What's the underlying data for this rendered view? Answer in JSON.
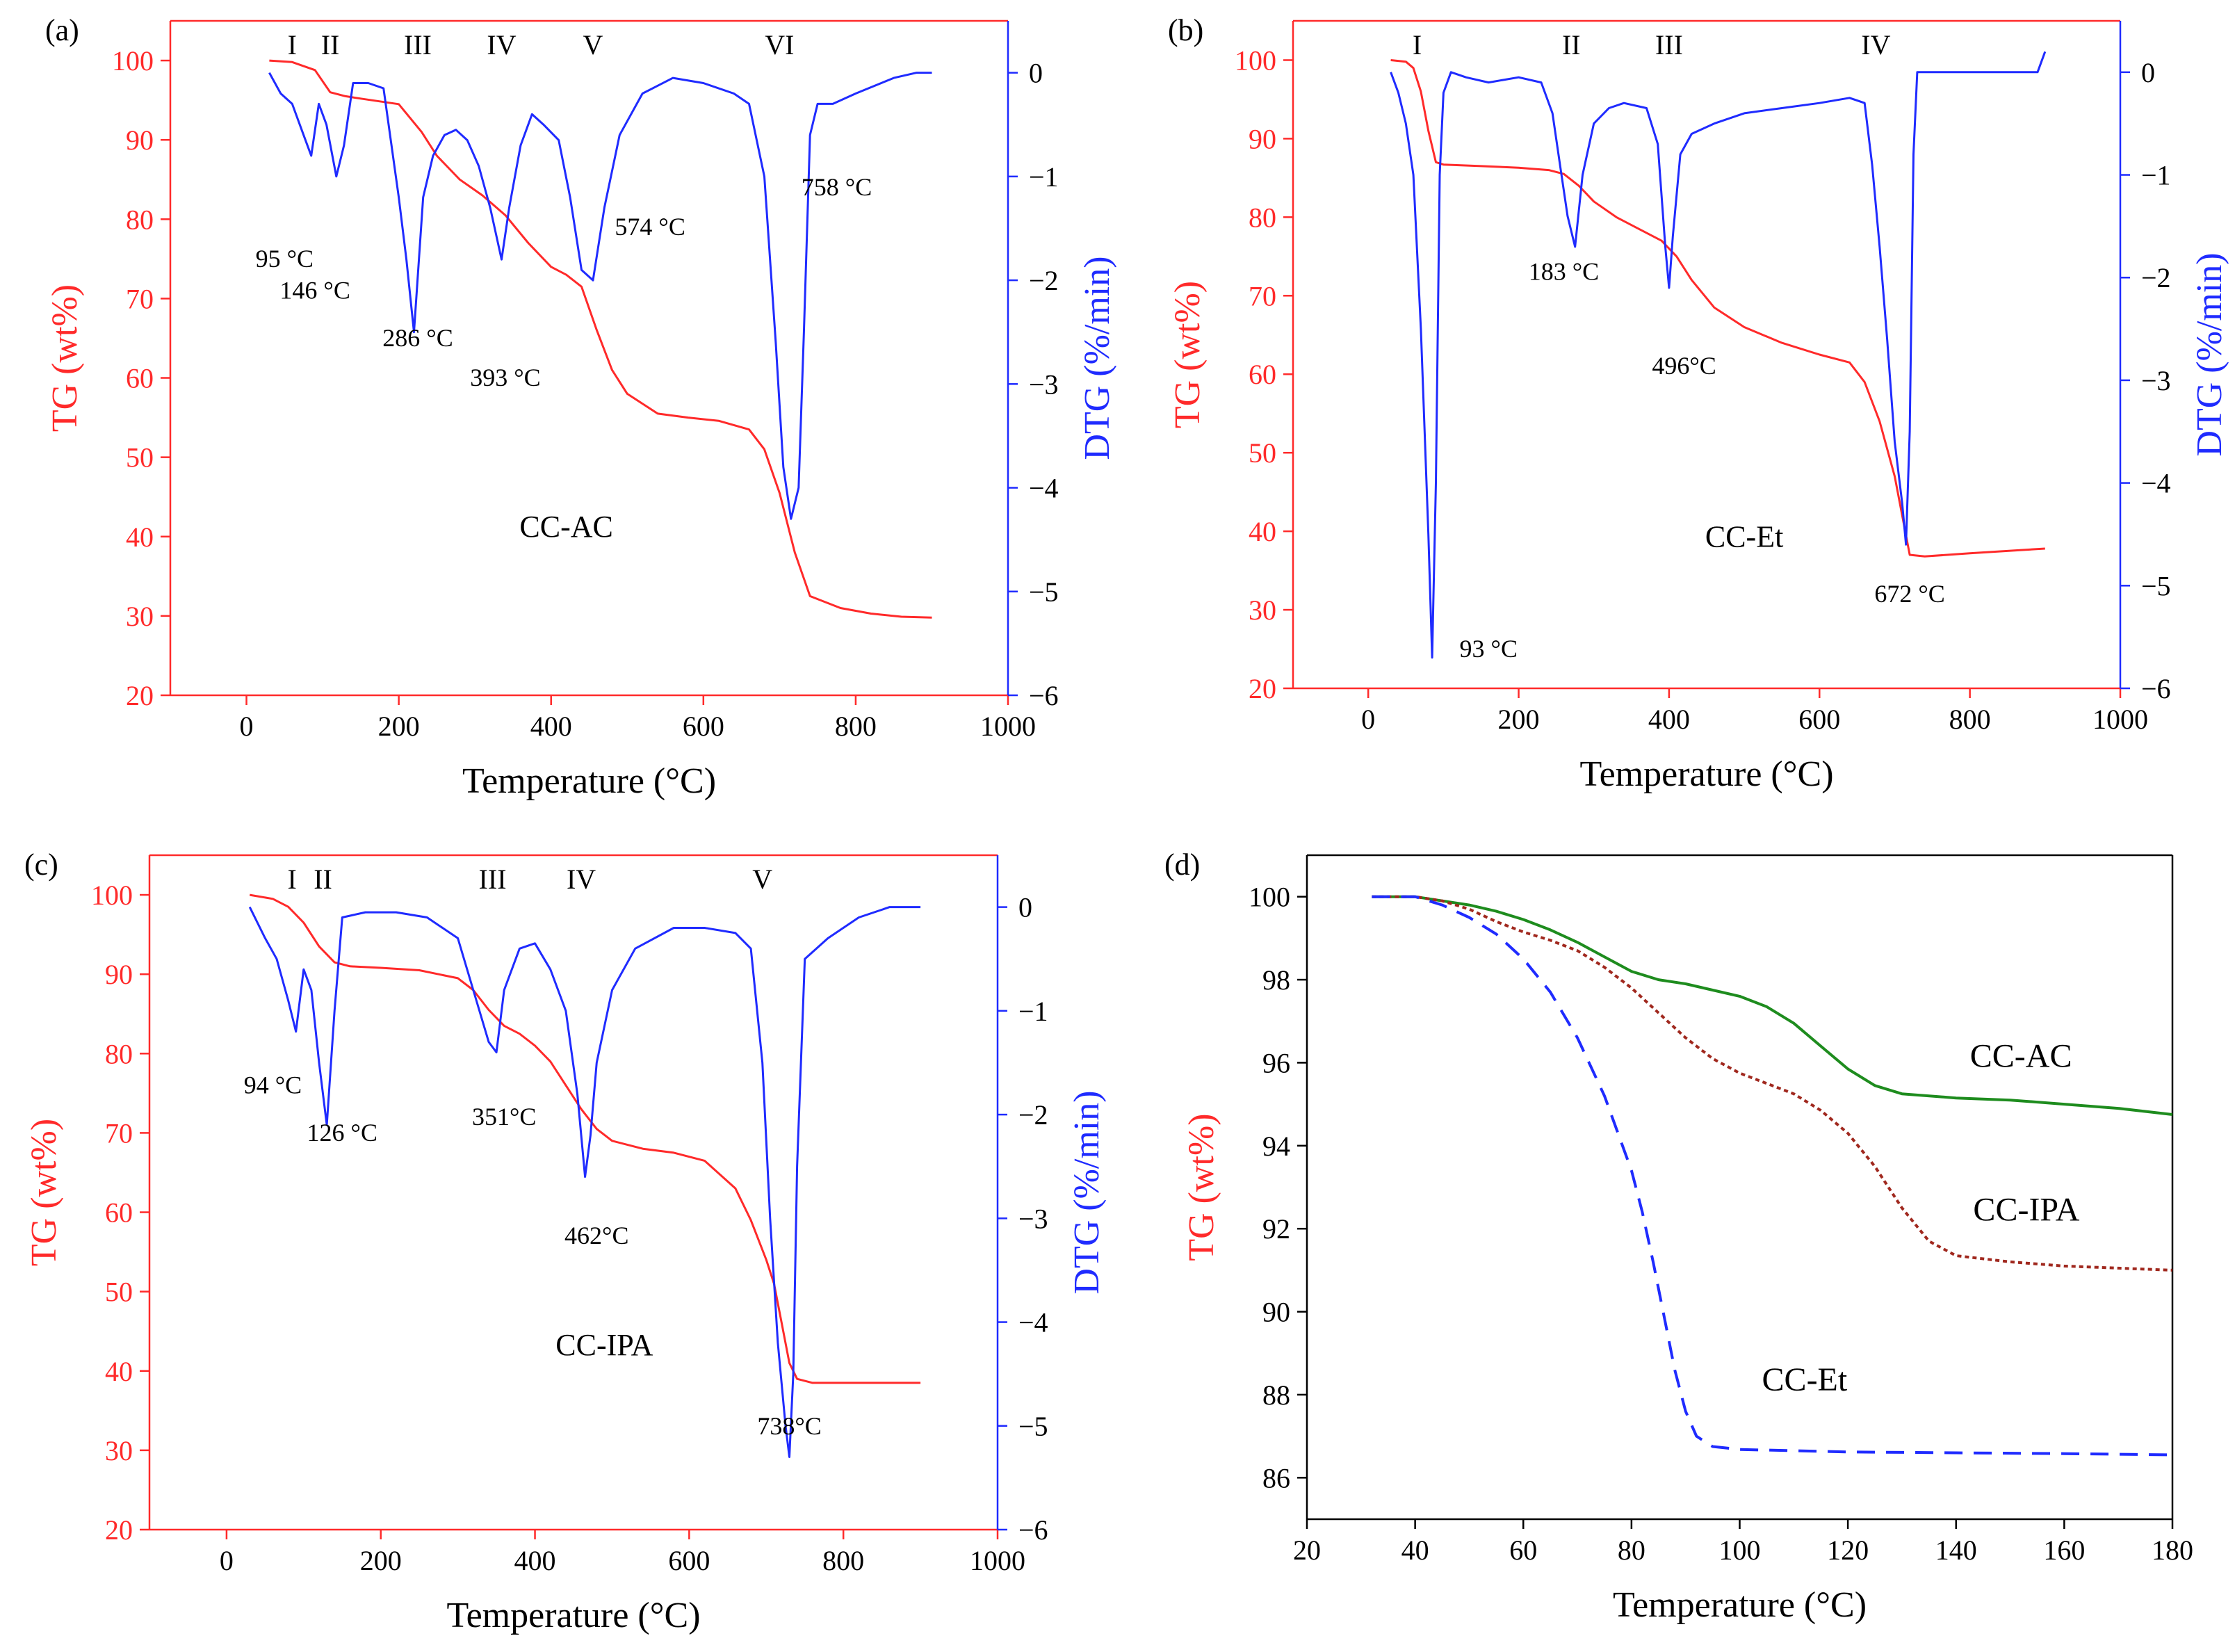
{
  "colors": {
    "tg": "#ff2a2a",
    "dtg": "#1f2bff",
    "axis_left": "#ff2a2a",
    "axis_right": "#1f2bff",
    "frame": "#ff2a2a",
    "black": "#000000",
    "cc_ac": "#1e8c1e",
    "cc_ipa": "#a0281e",
    "cc_et": "#1f2bff"
  },
  "chart_data": [
    {
      "id": "a",
      "panel_label": "(a)",
      "type": "line",
      "sample": "CC-AC",
      "xlabel": "Temperature (°C)",
      "ylabel_left": "TG (wt%)",
      "ylabel_right": "DTG (%/min)",
      "xlim": [
        -100,
        1000
      ],
      "ylim_left": [
        20,
        105
      ],
      "ylim_right": [
        -6,
        0.5
      ],
      "xticks": [
        "0",
        "200",
        "400",
        "600",
        "800",
        "1000"
      ],
      "yticks_left": [
        "20",
        "30",
        "40",
        "50",
        "60",
        "70",
        "80",
        "90",
        "100"
      ],
      "yticks_right": [
        "0",
        "−1",
        "−2",
        "−3",
        "−4",
        "−5",
        "−6"
      ],
      "stages": [
        {
          "label": "I",
          "x": 60
        },
        {
          "label": "II",
          "x": 110
        },
        {
          "label": "III",
          "x": 225
        },
        {
          "label": "IV",
          "x": 335
        },
        {
          "label": "V",
          "x": 455
        },
        {
          "label": "VI",
          "x": 700
        }
      ],
      "annotations": [
        {
          "text": "95 °C",
          "x": 50,
          "y": 74
        },
        {
          "text": "146 °C",
          "x": 90,
          "y": 70
        },
        {
          "text": "286 °C",
          "x": 225,
          "y": 64
        },
        {
          "text": "393 °C",
          "x": 340,
          "y": 59
        },
        {
          "text": "574 °C",
          "x": 530,
          "y": 78
        },
        {
          "text": "758 °C",
          "x": 775,
          "y": 83
        }
      ],
      "sample_label_pos": {
        "x": 420,
        "y": 40
      },
      "series": [
        {
          "name": "TG",
          "axis": "left",
          "x": [
            30,
            60,
            90,
            110,
            130,
            150,
            200,
            230,
            250,
            280,
            310,
            340,
            370,
            400,
            420,
            440,
            460,
            480,
            500,
            540,
            580,
            620,
            660,
            680,
            700,
            720,
            740,
            780,
            820,
            860,
            900
          ],
          "y": [
            100,
            99.8,
            98.8,
            96,
            95.5,
            95.2,
            94.5,
            91,
            88,
            85,
            83,
            80.5,
            77,
            74,
            73,
            71.5,
            66,
            61,
            58,
            55.5,
            55,
            54.6,
            53.5,
            51,
            45.5,
            38,
            32.5,
            31,
            30.3,
            29.9,
            29.8
          ]
        },
        {
          "name": "DTG",
          "axis": "right",
          "x": [
            30,
            45,
            60,
            75,
            85,
            95,
            105,
            118,
            128,
            140,
            160,
            180,
            200,
            210,
            220,
            232,
            245,
            260,
            275,
            290,
            305,
            320,
            335,
            345,
            360,
            375,
            390,
            410,
            425,
            440,
            455,
            470,
            490,
            520,
            560,
            600,
            640,
            660,
            680,
            695,
            705,
            715,
            725,
            732,
            740,
            750,
            770,
            800,
            850,
            880,
            900
          ],
          "y": [
            0,
            -0.2,
            -0.3,
            -0.6,
            -0.8,
            -0.3,
            -0.5,
            -1.0,
            -0.7,
            -0.1,
            -0.1,
            -0.15,
            -1.2,
            -1.8,
            -2.5,
            -1.2,
            -0.8,
            -0.6,
            -0.55,
            -0.65,
            -0.9,
            -1.3,
            -1.8,
            -1.3,
            -0.7,
            -0.4,
            -0.5,
            -0.65,
            -1.2,
            -1.9,
            -2.0,
            -1.3,
            -0.6,
            -0.2,
            -0.05,
            -0.1,
            -0.2,
            -0.3,
            -1.0,
            -2.6,
            -3.8,
            -4.3,
            -4.0,
            -2.5,
            -0.6,
            -0.3,
            -0.3,
            -0.2,
            -0.05,
            0,
            0
          ]
        }
      ]
    },
    {
      "id": "b",
      "panel_label": "(b)",
      "type": "line",
      "sample": "CC-Et",
      "xlabel": "Temperature (°C)",
      "ylabel_left": "TG (wt%)",
      "ylabel_right": "DTG (%/min)",
      "xlim": [
        -100,
        1000
      ],
      "ylim_left": [
        20,
        105
      ],
      "ylim_right": [
        -6,
        0.5
      ],
      "xticks": [
        "0",
        "200",
        "400",
        "600",
        "800",
        "1000"
      ],
      "yticks_left": [
        "20",
        "30",
        "40",
        "50",
        "60",
        "70",
        "80",
        "90",
        "100"
      ],
      "yticks_right": [
        "0",
        "−1",
        "−2",
        "−3",
        "−4",
        "−5",
        "−6"
      ],
      "stages": [
        {
          "label": "I",
          "x": 65
        },
        {
          "label": "II",
          "x": 270
        },
        {
          "label": "III",
          "x": 400
        },
        {
          "label": "IV",
          "x": 675
        }
      ],
      "annotations": [
        {
          "text": "93 °C",
          "x": 160,
          "y": 24
        },
        {
          "text": "183 °C",
          "x": 260,
          "y": 72
        },
        {
          "text": "496°C",
          "x": 420,
          "y": 60
        },
        {
          "text": "672 °C",
          "x": 720,
          "y": 31
        }
      ],
      "sample_label_pos": {
        "x": 500,
        "y": 38
      },
      "series": [
        {
          "name": "TG",
          "axis": "left",
          "x": [
            30,
            50,
            60,
            70,
            80,
            90,
            100,
            150,
            200,
            240,
            260,
            280,
            300,
            330,
            360,
            390,
            410,
            430,
            460,
            500,
            550,
            600,
            640,
            660,
            680,
            700,
            710,
            720,
            740,
            800,
            850,
            900
          ],
          "y": [
            100,
            99.8,
            99,
            96,
            91,
            87,
            86.7,
            86.5,
            86.3,
            86,
            85.5,
            84,
            82,
            80,
            78.5,
            77,
            75,
            72,
            68.5,
            66,
            64,
            62.5,
            61.5,
            59,
            54,
            47,
            42,
            37,
            36.8,
            37.2,
            37.5,
            37.8
          ]
        },
        {
          "name": "DTG",
          "axis": "right",
          "x": [
            30,
            40,
            50,
            60,
            70,
            80,
            85,
            90,
            95,
            100,
            110,
            130,
            160,
            200,
            230,
            245,
            255,
            265,
            275,
            285,
            300,
            320,
            340,
            370,
            385,
            395,
            400,
            405,
            415,
            430,
            460,
            500,
            550,
            600,
            640,
            660,
            670,
            680,
            690,
            700,
            710,
            715,
            720,
            725,
            730,
            760,
            800,
            850,
            890,
            900
          ],
          "y": [
            0,
            -0.2,
            -0.5,
            -1.0,
            -2.5,
            -4.5,
            -5.7,
            -4.0,
            -1.0,
            -0.2,
            0,
            -0.05,
            -0.1,
            -0.05,
            -0.1,
            -0.4,
            -0.9,
            -1.4,
            -1.7,
            -1.0,
            -0.5,
            -0.35,
            -0.3,
            -0.35,
            -0.7,
            -1.7,
            -2.1,
            -1.6,
            -0.8,
            -0.6,
            -0.5,
            -0.4,
            -0.35,
            -0.3,
            -0.25,
            -0.3,
            -0.9,
            -1.7,
            -2.6,
            -3.6,
            -4.2,
            -4.6,
            -3.5,
            -0.8,
            0,
            0,
            0,
            0,
            0,
            0.2
          ]
        }
      ]
    },
    {
      "id": "c",
      "panel_label": "(c)",
      "type": "line",
      "sample": "CC-IPA",
      "xlabel": "Temperature (°C)",
      "ylabel_left": "TG (wt%)",
      "ylabel_right": "DTG (%/min)",
      "xlim": [
        -100,
        1000
      ],
      "ylim_left": [
        20,
        105
      ],
      "ylim_right": [
        -6,
        0.5
      ],
      "xticks": [
        "0",
        "200",
        "400",
        "600",
        "800",
        "1000"
      ],
      "yticks_left": [
        "20",
        "30",
        "40",
        "50",
        "60",
        "70",
        "80",
        "90",
        "100"
      ],
      "yticks_right": [
        "0",
        "−1",
        "−2",
        "−3",
        "−4",
        "−5",
        "−6"
      ],
      "stages": [
        {
          "label": "I",
          "x": 85
        },
        {
          "label": "II",
          "x": 125
        },
        {
          "label": "III",
          "x": 345
        },
        {
          "label": "IV",
          "x": 460
        },
        {
          "label": "V",
          "x": 695
        }
      ],
      "annotations": [
        {
          "text": "94 °C",
          "x": 60,
          "y": 75
        },
        {
          "text": "126 °C",
          "x": 150,
          "y": 69
        },
        {
          "text": "351°C",
          "x": 360,
          "y": 71
        },
        {
          "text": "462°C",
          "x": 480,
          "y": 56
        },
        {
          "text": "738°C",
          "x": 730,
          "y": 32
        }
      ],
      "sample_label_pos": {
        "x": 490,
        "y": 42
      },
      "series": [
        {
          "name": "TG",
          "axis": "left",
          "x": [
            30,
            60,
            80,
            100,
            120,
            140,
            160,
            200,
            250,
            300,
            320,
            340,
            360,
            380,
            400,
            420,
            440,
            460,
            480,
            500,
            540,
            580,
            620,
            660,
            680,
            700,
            710,
            720,
            730,
            740,
            760,
            800,
            850,
            900
          ],
          "y": [
            100,
            99.5,
            98.5,
            96.5,
            93.5,
            91.5,
            91,
            90.8,
            90.5,
            89.5,
            88,
            85.5,
            83.5,
            82.5,
            81,
            79,
            76,
            73,
            70.5,
            69,
            68,
            67.5,
            66.5,
            63,
            59,
            54,
            51,
            46,
            41,
            39,
            38.5,
            38.5,
            38.5,
            38.5
          ]
        },
        {
          "name": "DTG",
          "axis": "right",
          "x": [
            30,
            50,
            65,
            80,
            90,
            100,
            110,
            120,
            130,
            140,
            150,
            180,
            220,
            260,
            300,
            320,
            340,
            350,
            360,
            380,
            400,
            420,
            440,
            455,
            465,
            472,
            480,
            500,
            530,
            580,
            620,
            660,
            680,
            695,
            705,
            715,
            725,
            730,
            735,
            740,
            750,
            780,
            820,
            860,
            900
          ],
          "y": [
            0,
            -0.3,
            -0.5,
            -0.9,
            -1.2,
            -0.6,
            -0.8,
            -1.5,
            -2.1,
            -1.0,
            -0.1,
            -0.05,
            -0.05,
            -0.1,
            -0.3,
            -0.8,
            -1.3,
            -1.4,
            -0.8,
            -0.4,
            -0.35,
            -0.6,
            -1.0,
            -1.8,
            -2.6,
            -2.2,
            -1.5,
            -0.8,
            -0.4,
            -0.2,
            -0.2,
            -0.25,
            -0.4,
            -1.5,
            -3.0,
            -4.2,
            -5.0,
            -5.3,
            -4.5,
            -2.5,
            -0.5,
            -0.3,
            -0.1,
            0,
            0
          ]
        }
      ]
    },
    {
      "id": "d",
      "panel_label": "(d)",
      "type": "line",
      "xlabel": "Temperature (°C)",
      "ylabel_left": "TG (wt%)",
      "xlim": [
        20,
        180
      ],
      "ylim_left": [
        85,
        101
      ],
      "xticks": [
        "20",
        "40",
        "60",
        "80",
        "100",
        "120",
        "140",
        "160",
        "180"
      ],
      "yticks_left": [
        "86",
        "88",
        "90",
        "92",
        "94",
        "96",
        "98",
        "100"
      ],
      "series": [
        {
          "name": "CC-AC",
          "style": "solid",
          "label_pos": {
            "x": 152,
            "y": 95.9
          },
          "x": [
            32,
            40,
            50,
            55,
            60,
            65,
            70,
            75,
            80,
            85,
            90,
            95,
            100,
            105,
            110,
            115,
            120,
            125,
            130,
            140,
            150,
            160,
            170,
            180
          ],
          "y": [
            100,
            100,
            99.8,
            99.65,
            99.45,
            99.2,
            98.9,
            98.55,
            98.2,
            98,
            97.9,
            97.75,
            97.6,
            97.35,
            96.95,
            96.4,
            95.85,
            95.45,
            95.25,
            95.15,
            95.1,
            95.0,
            94.9,
            94.75
          ]
        },
        {
          "name": "CC-IPA",
          "style": "dotted",
          "label_pos": {
            "x": 153,
            "y": 92.2
          },
          "x": [
            32,
            40,
            45,
            50,
            55,
            60,
            65,
            70,
            75,
            80,
            85,
            90,
            95,
            100,
            105,
            110,
            115,
            120,
            125,
            130,
            135,
            140,
            150,
            160,
            170,
            180
          ],
          "y": [
            100,
            100,
            99.9,
            99.7,
            99.4,
            99.15,
            98.95,
            98.7,
            98.3,
            97.8,
            97.2,
            96.6,
            96.1,
            95.75,
            95.5,
            95.25,
            94.85,
            94.3,
            93.5,
            92.5,
            91.7,
            91.35,
            91.2,
            91.1,
            91.05,
            91.0
          ]
        },
        {
          "name": "CC-Et",
          "style": "dashed",
          "label_pos": {
            "x": 112,
            "y": 88.1
          },
          "x": [
            32,
            40,
            45,
            50,
            55,
            60,
            65,
            70,
            75,
            80,
            82,
            84,
            86,
            88,
            90,
            92,
            95,
            100,
            110,
            120,
            140,
            160,
            180
          ],
          "y": [
            100,
            100,
            99.8,
            99.5,
            99.1,
            98.5,
            97.7,
            96.6,
            95.2,
            93.4,
            92.4,
            91.2,
            89.9,
            88.6,
            87.6,
            87.0,
            86.75,
            86.68,
            86.65,
            86.62,
            86.6,
            86.58,
            86.55
          ]
        }
      ]
    }
  ]
}
